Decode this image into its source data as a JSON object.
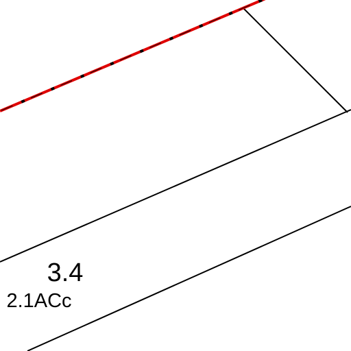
{
  "parcel": {
    "area": "3.4",
    "code": "2.1ACc"
  }
}
